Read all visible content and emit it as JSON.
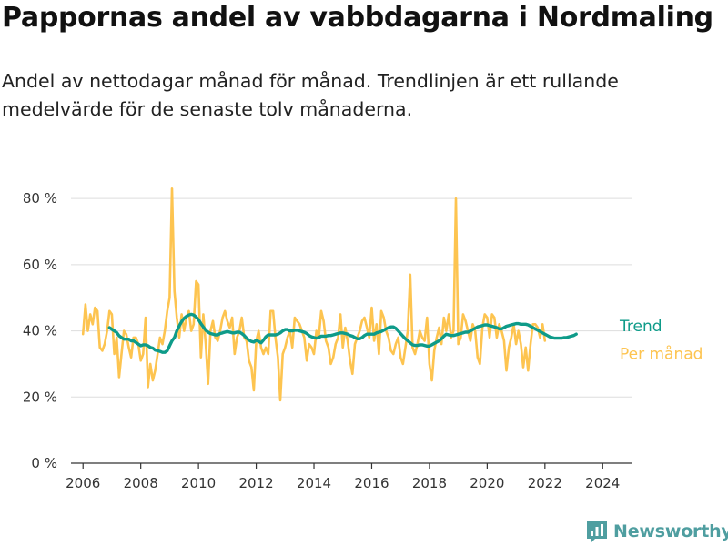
{
  "title": "Pappornas andel av vabbdagarna i Nordmaling",
  "subtitle": "Andel av nettodagar månad för månad. Trendlinjen är ett rullande medelvärde för de senaste tolv månaderna.",
  "brand": {
    "name": "Newsworthy",
    "icon": "newsworthy-chart-logo-icon",
    "color": "#4f9ea0"
  },
  "chart_data": {
    "type": "line",
    "x_ticks": [
      "2006",
      "2008",
      "2010",
      "2012",
      "2014",
      "2016",
      "2018",
      "2020",
      "2022",
      "2024"
    ],
    "y_ticks": [
      0,
      20,
      40,
      60,
      80
    ],
    "y_tick_labels": [
      "0 %",
      "20 %",
      "40 %",
      "60 %",
      "80 %"
    ],
    "xlim": [
      "2005-08",
      "2025-01"
    ],
    "ylim": [
      0,
      85
    ],
    "grid": "horizontal",
    "legend_placement": "right, at line ends",
    "series": [
      {
        "name": "Per månad",
        "color": "#fdc450",
        "x_start": "2006-01",
        "frequency": "monthly",
        "values": [
          39,
          48,
          40,
          45,
          42,
          47,
          46,
          35,
          34,
          36,
          40,
          46,
          45,
          33,
          38,
          26,
          33,
          40,
          39,
          35,
          32,
          38,
          38,
          36,
          31,
          33,
          44,
          23,
          30,
          25,
          28,
          33,
          38,
          36,
          40,
          46,
          50,
          83,
          52,
          44,
          38,
          45,
          40,
          44,
          46,
          40,
          42,
          55,
          54,
          32,
          45,
          36,
          24,
          40,
          43,
          38,
          37,
          40,
          44,
          46,
          43,
          41,
          44,
          33,
          38,
          40,
          44,
          38,
          37,
          31,
          29,
          22,
          37,
          40,
          35,
          33,
          35,
          33,
          46,
          46,
          38,
          32,
          19,
          33,
          35,
          38,
          40,
          35,
          44,
          43,
          42,
          40,
          38,
          31,
          36,
          35,
          33,
          40,
          38,
          46,
          43,
          37,
          35,
          30,
          32,
          36,
          38,
          45,
          35,
          41,
          37,
          31,
          27,
          36,
          38,
          40,
          43,
          44,
          41,
          38,
          47,
          37,
          42,
          33,
          46,
          44,
          40,
          38,
          34,
          33,
          36,
          38,
          32,
          30,
          35,
          40,
          57,
          35,
          33,
          36,
          40,
          38,
          37,
          44,
          30,
          25,
          34,
          38,
          41,
          36,
          44,
          40,
          45,
          38,
          40,
          80,
          36,
          38,
          45,
          43,
          40,
          37,
          42,
          40,
          32,
          30,
          41,
          45,
          44,
          38,
          45,
          44,
          38,
          42,
          40,
          37,
          28,
          35,
          38,
          42,
          36,
          40,
          36,
          29,
          35,
          28,
          36,
          42,
          42,
          41,
          38,
          42,
          37
        ]
      },
      {
        "name": "Trend",
        "color": "#0e9b89",
        "x_start": "2006-12",
        "frequency": "monthly",
        "values": [
          41,
          40.5,
          40,
          39.5,
          38.5,
          38,
          37.5,
          37.5,
          37.5,
          37,
          37,
          36.5,
          36,
          35.5,
          35.8,
          35.8,
          35.5,
          35,
          34.8,
          34.2,
          34,
          33.8,
          33.5,
          33.5,
          34,
          35.5,
          37,
          38,
          40,
          41.5,
          42.8,
          43.8,
          44.4,
          44.8,
          45,
          44.8,
          44.2,
          43.4,
          42.2,
          41.2,
          40.2,
          39.6,
          39.2,
          39,
          38.8,
          38.8,
          39.2,
          39.4,
          39.6,
          39.8,
          39.6,
          39.4,
          39.4,
          39.6,
          39.6,
          39.2,
          38.6,
          37.8,
          37.2,
          36.8,
          36.6,
          37.2,
          36.8,
          36.4,
          37.2,
          38.2,
          38.8,
          38.8,
          38.8,
          38.8,
          39,
          39.4,
          40,
          40.4,
          40.4,
          40,
          40,
          40.2,
          40.2,
          40,
          39.8,
          39.6,
          39.2,
          38.6,
          38.2,
          38,
          37.8,
          38,
          38.4,
          38.4,
          38.4,
          38.6,
          38.6,
          38.8,
          39,
          39.2,
          39.4,
          39.4,
          39.2,
          39,
          38.6,
          38.4,
          38,
          37.6,
          37.6,
          38,
          38.6,
          39,
          39,
          39,
          39,
          39.4,
          39.6,
          39.8,
          40.2,
          40.6,
          41,
          41.2,
          41.2,
          40.8,
          40,
          39.2,
          38.4,
          37.6,
          37,
          36.4,
          35.8,
          35.6,
          35.6,
          35.8,
          35.8,
          35.6,
          35.4,
          35.4,
          35.8,
          36.2,
          36.6,
          37,
          37.6,
          38.4,
          39,
          38.8,
          38.6,
          38.6,
          38.8,
          39,
          39.2,
          39.4,
          39.6,
          39.6,
          40,
          40.4,
          40.8,
          41.2,
          41.4,
          41.6,
          41.8,
          41.8,
          41.6,
          41.4,
          41.2,
          41,
          40.6,
          40.6,
          41,
          41.4,
          41.6,
          41.8,
          42,
          42.2,
          42.2,
          42,
          42,
          42,
          41.8,
          41.4,
          41,
          40.6,
          40.2,
          39.8,
          39.4,
          39,
          38.6,
          38.2,
          38,
          37.8,
          37.8,
          37.8,
          37.8,
          38,
          38,
          38.2,
          38.4,
          38.6,
          39
        ]
      }
    ]
  }
}
